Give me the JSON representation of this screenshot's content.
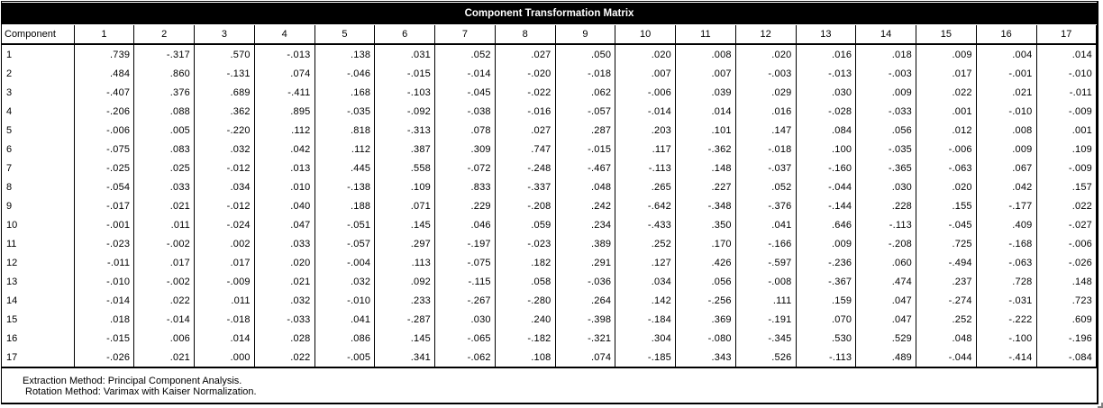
{
  "table": {
    "title": "Component Transformation Matrix",
    "corner_label": "Component",
    "columns": [
      "1",
      "2",
      "3",
      "4",
      "5",
      "6",
      "7",
      "8",
      "9",
      "10",
      "11",
      "12",
      "13",
      "14",
      "15",
      "16",
      "17"
    ],
    "rows": [
      {
        "label": "1",
        "values": [
          ".739",
          "-.317",
          ".570",
          "-.013",
          ".138",
          ".031",
          ".052",
          ".027",
          ".050",
          ".020",
          ".008",
          ".020",
          ".016",
          ".018",
          ".009",
          ".004",
          ".014"
        ]
      },
      {
        "label": "2",
        "values": [
          ".484",
          ".860",
          "-.131",
          ".074",
          "-.046",
          "-.015",
          "-.014",
          "-.020",
          "-.018",
          ".007",
          ".007",
          "-.003",
          "-.013",
          "-.003",
          ".017",
          "-.001",
          "-.010"
        ]
      },
      {
        "label": "3",
        "values": [
          "-.407",
          ".376",
          ".689",
          "-.411",
          ".168",
          "-.103",
          "-.045",
          "-.022",
          ".062",
          "-.006",
          ".039",
          ".029",
          ".030",
          ".009",
          ".022",
          ".021",
          "-.011"
        ]
      },
      {
        "label": "4",
        "values": [
          "-.206",
          ".088",
          ".362",
          ".895",
          "-.035",
          "-.092",
          "-.038",
          "-.016",
          "-.057",
          "-.014",
          ".014",
          ".016",
          "-.028",
          "-.033",
          ".001",
          "-.010",
          "-.009"
        ]
      },
      {
        "label": "5",
        "values": [
          "-.006",
          ".005",
          "-.220",
          ".112",
          ".818",
          "-.313",
          ".078",
          ".027",
          ".287",
          ".203",
          ".101",
          ".147",
          ".084",
          ".056",
          ".012",
          ".008",
          ".001"
        ]
      },
      {
        "label": "6",
        "values": [
          "-.075",
          ".083",
          ".032",
          ".042",
          ".112",
          ".387",
          ".309",
          ".747",
          "-.015",
          ".117",
          "-.362",
          "-.018",
          ".100",
          "-.035",
          "-.006",
          ".009",
          ".109"
        ]
      },
      {
        "label": "7",
        "values": [
          "-.025",
          ".025",
          "-.012",
          ".013",
          ".445",
          ".558",
          "-.072",
          "-.248",
          "-.467",
          "-.113",
          ".148",
          "-.037",
          "-.160",
          "-.365",
          "-.063",
          ".067",
          "-.009"
        ]
      },
      {
        "label": "8",
        "values": [
          "-.054",
          ".033",
          ".034",
          ".010",
          "-.138",
          ".109",
          ".833",
          "-.337",
          ".048",
          ".265",
          ".227",
          ".052",
          "-.044",
          ".030",
          ".020",
          ".042",
          ".157"
        ]
      },
      {
        "label": "9",
        "values": [
          "-.017",
          ".021",
          "-.012",
          ".040",
          ".188",
          ".071",
          ".229",
          "-.208",
          ".242",
          "-.642",
          "-.348",
          "-.376",
          "-.144",
          ".228",
          ".155",
          "-.177",
          ".022"
        ]
      },
      {
        "label": "10",
        "values": [
          "-.001",
          ".011",
          "-.024",
          ".047",
          "-.051",
          ".145",
          ".046",
          ".059",
          ".234",
          "-.433",
          ".350",
          ".041",
          ".646",
          "-.113",
          "-.045",
          ".409",
          "-.027"
        ]
      },
      {
        "label": "11",
        "values": [
          "-.023",
          "-.002",
          ".002",
          ".033",
          "-.057",
          ".297",
          "-.197",
          "-.023",
          ".389",
          ".252",
          ".170",
          "-.166",
          ".009",
          "-.208",
          ".725",
          "-.168",
          "-.006"
        ]
      },
      {
        "label": "12",
        "values": [
          "-.011",
          ".017",
          ".017",
          ".020",
          "-.004",
          ".113",
          "-.075",
          ".182",
          ".291",
          ".127",
          ".426",
          "-.597",
          "-.236",
          ".060",
          "-.494",
          "-.063",
          "-.026"
        ]
      },
      {
        "label": "13",
        "values": [
          "-.010",
          "-.002",
          "-.009",
          ".021",
          ".032",
          ".092",
          "-.115",
          ".058",
          "-.036",
          ".034",
          ".056",
          "-.008",
          "-.367",
          ".474",
          ".237",
          ".728",
          ".148"
        ]
      },
      {
        "label": "14",
        "values": [
          "-.014",
          ".022",
          ".011",
          ".032",
          "-.010",
          ".233",
          "-.267",
          "-.280",
          ".264",
          ".142",
          "-.256",
          ".111",
          ".159",
          ".047",
          "-.274",
          "-.031",
          ".723"
        ]
      },
      {
        "label": "15",
        "values": [
          ".018",
          "-.014",
          "-.018",
          "-.033",
          ".041",
          "-.287",
          ".030",
          ".240",
          "-.398",
          "-.184",
          ".369",
          "-.191",
          ".070",
          ".047",
          ".252",
          "-.222",
          ".609"
        ]
      },
      {
        "label": "16",
        "values": [
          "-.015",
          ".006",
          ".014",
          ".028",
          ".086",
          ".145",
          "-.065",
          "-.182",
          "-.321",
          ".304",
          "-.080",
          "-.345",
          ".530",
          ".529",
          ".048",
          "-.100",
          "-.196"
        ]
      },
      {
        "label": "17",
        "values": [
          "-.026",
          ".021",
          ".000",
          ".022",
          "-.005",
          ".341",
          "-.062",
          ".108",
          ".074",
          "-.185",
          ".343",
          ".526",
          "-.113",
          ".489",
          "-.044",
          "-.414",
          "-.084"
        ]
      }
    ]
  },
  "footnotes": {
    "extraction": "Extraction Method: Principal Component Analysis.",
    "rotation": "Rotation Method: Varimax with Kaiser Normalization."
  },
  "colors": {
    "title_bg": "#000000",
    "title_fg": "#ffffff",
    "grid": "#000000"
  }
}
